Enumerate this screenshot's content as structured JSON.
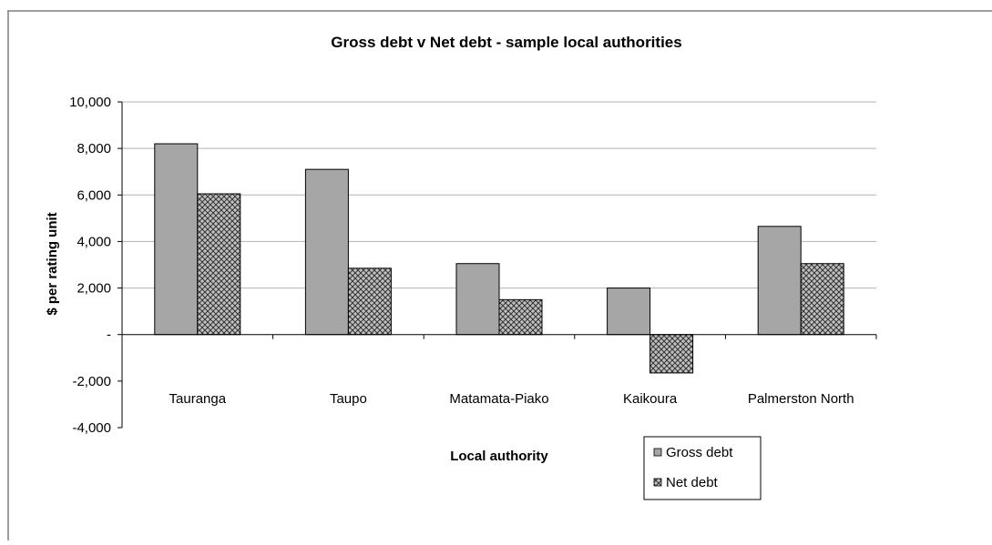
{
  "colors": {
    "gross_fill": "#a6a6a6",
    "net_fill": "#c0c0c0",
    "net_hatch": "#333333",
    "gridline": "#b3b3b3",
    "axis": "#000000",
    "border": "#7f7f7f"
  },
  "chart_data": {
    "type": "bar",
    "title": "Gross debt v Net debt - sample local authorities",
    "xlabel": "Local authority",
    "ylabel": "$ per rating unit",
    "categories": [
      "Tauranga",
      "Taupo",
      "Matamata-Piako",
      "Kaikoura",
      "Palmerston North"
    ],
    "series": [
      {
        "name": "Gross debt",
        "values": [
          8200,
          7100,
          3050,
          2000,
          4650
        ]
      },
      {
        "name": "Net debt",
        "values": [
          6050,
          2850,
          1500,
          -1650,
          3050
        ]
      }
    ],
    "ylim": [
      -4000,
      10000
    ],
    "yticks": [
      -4000,
      -2000,
      0,
      2000,
      4000,
      6000,
      8000,
      10000
    ],
    "ytick_labels": [
      "-4,000",
      "-2,000",
      "-",
      "2,000",
      "4,000",
      "6,000",
      "8,000",
      "10,000"
    ],
    "grid": true,
    "legend": "bottom-right"
  }
}
